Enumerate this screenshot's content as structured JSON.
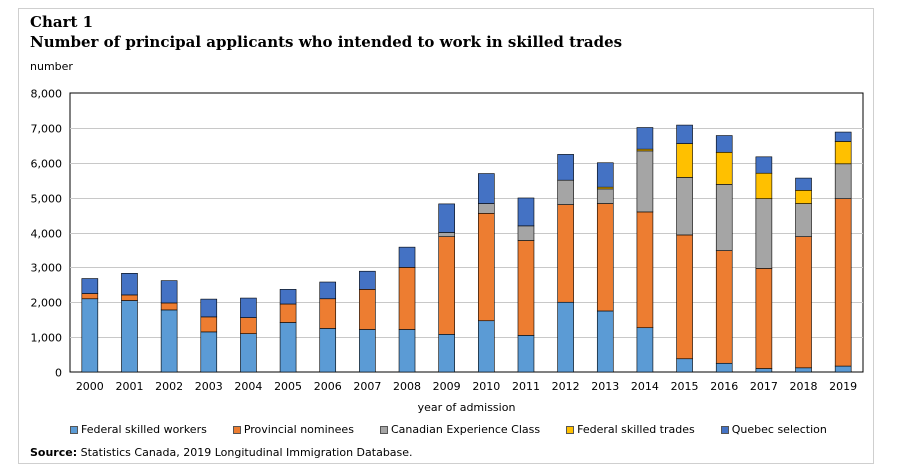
{
  "chart_label": "Chart 1",
  "title": "Number of principal  applicants who intended to work in skilled trades",
  "source_label": "Source:",
  "source_text": " Statistics Canada, 2019 Longitudinal Immigration Database.",
  "chart_data": {
    "type": "bar",
    "stacked": true,
    "title": "Number of principal  applicants who intended to work in skilled trades",
    "xlabel": "year of admission",
    "ylabel": "number",
    "ylim": [
      0,
      8000
    ],
    "yticks": [
      "0",
      "1,000",
      "2,000",
      "3,000",
      "4,000",
      "5,000",
      "6,000",
      "7,000",
      "8,000"
    ],
    "ytick_values": [
      0,
      1000,
      2000,
      3000,
      4000,
      5000,
      6000,
      7000,
      8000
    ],
    "grid": true,
    "legend_position": "bottom",
    "categories": [
      "2000",
      "2001",
      "2002",
      "2003",
      "2004",
      "2005",
      "2006",
      "2007",
      "2008",
      "2009",
      "2010",
      "2011",
      "2012",
      "2013",
      "2014",
      "2015",
      "2016",
      "2017",
      "2018",
      "2019"
    ],
    "series": [
      {
        "name": "Federal skilled workers",
        "color": "#5b9bd5",
        "values": [
          2100,
          2050,
          1780,
          1150,
          1100,
          1420,
          1250,
          1220,
          1220,
          1080,
          1470,
          1050,
          2000,
          1750,
          1270,
          380,
          250,
          100,
          120,
          170
        ]
      },
      {
        "name": "Provincial nominees",
        "color": "#ed7d31",
        "values": [
          150,
          160,
          200,
          430,
          460,
          530,
          850,
          1150,
          1780,
          2800,
          3080,
          2720,
          2800,
          3080,
          3320,
          3550,
          3230,
          2870,
          3760,
          4800
        ]
      },
      {
        "name": "Canadian Experience Class",
        "color": "#a5a5a5",
        "values": [
          0,
          0,
          0,
          0,
          0,
          0,
          0,
          0,
          0,
          120,
          280,
          420,
          700,
          420,
          1750,
          1650,
          1900,
          2000,
          950,
          1000
        ]
      },
      {
        "name": "Federal skilled trades",
        "color": "#ffc000",
        "values": [
          0,
          0,
          0,
          0,
          0,
          0,
          0,
          0,
          0,
          0,
          0,
          0,
          0,
          50,
          50,
          970,
          920,
          730,
          380,
          640
        ]
      },
      {
        "name": "Quebec selection",
        "color": "#4472c4",
        "values": [
          430,
          620,
          640,
          510,
          560,
          420,
          480,
          520,
          580,
          820,
          860,
          800,
          740,
          700,
          620,
          530,
          480,
          470,
          350,
          270
        ]
      }
    ]
  }
}
